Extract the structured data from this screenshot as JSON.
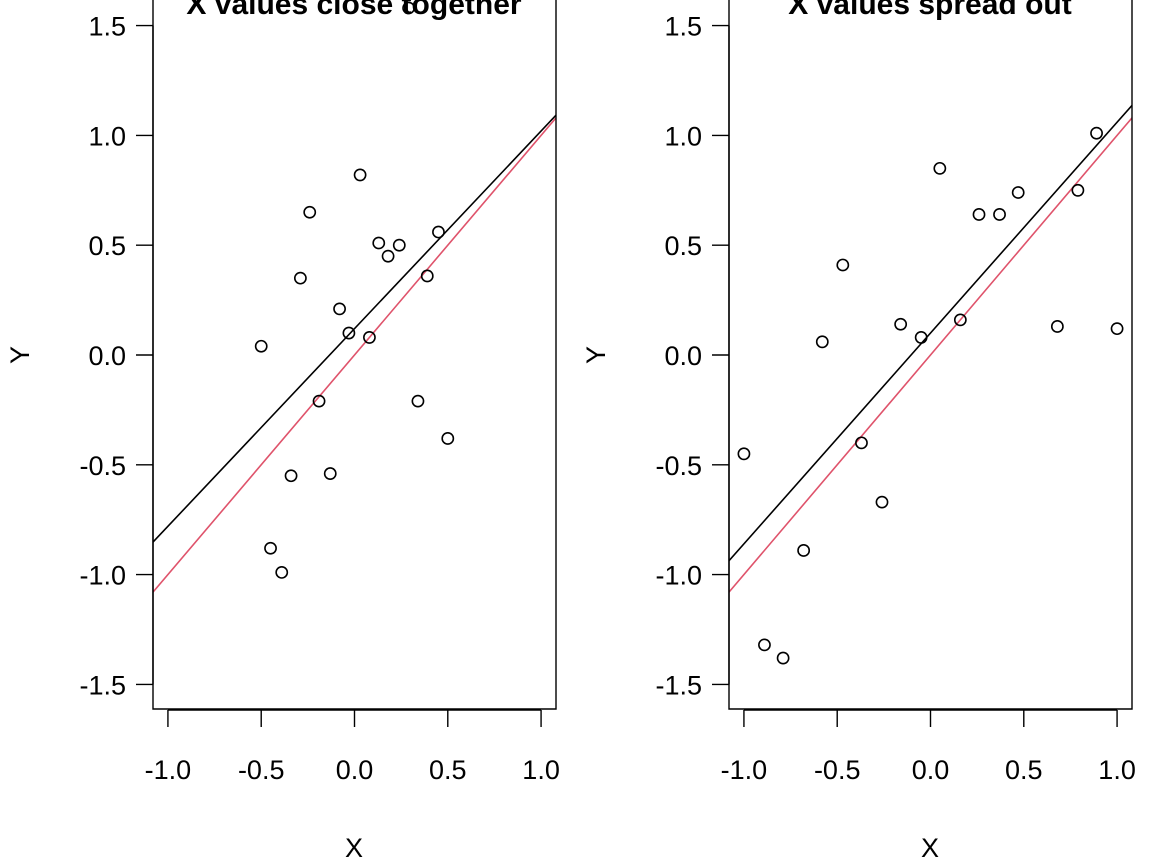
{
  "chart_data": [
    {
      "type": "scatter",
      "title": "X values close together",
      "xlabel": "X",
      "ylabel": "Y",
      "xlim": [
        -1.08,
        1.08
      ],
      "ylim": [
        -1.62,
        1.62
      ],
      "xticks": [
        -1.0,
        -0.5,
        0.0,
        0.5,
        1.0
      ],
      "yticks": [
        -1.5,
        -1.0,
        -0.5,
        0.0,
        0.5,
        1.0,
        1.5
      ],
      "xtick_labels": [
        "-1.0",
        "-0.5",
        "0.0",
        "0.5",
        "1.0"
      ],
      "ytick_labels": [
        "-1.5",
        "-1.0",
        "-0.5",
        "0.0",
        "0.5",
        "1.0",
        "1.5"
      ],
      "points": [
        {
          "x": -0.5,
          "y": 0.04
        },
        {
          "x": -0.45,
          "y": -0.88
        },
        {
          "x": -0.39,
          "y": -0.99
        },
        {
          "x": -0.34,
          "y": -0.55
        },
        {
          "x": -0.29,
          "y": 0.35
        },
        {
          "x": -0.24,
          "y": 0.65
        },
        {
          "x": -0.19,
          "y": -0.21
        },
        {
          "x": -0.13,
          "y": -0.54
        },
        {
          "x": -0.08,
          "y": 0.21
        },
        {
          "x": -0.03,
          "y": 0.1
        },
        {
          "x": 0.03,
          "y": 0.82
        },
        {
          "x": 0.08,
          "y": 0.08
        },
        {
          "x": 0.13,
          "y": 0.51
        },
        {
          "x": 0.18,
          "y": 0.45
        },
        {
          "x": 0.24,
          "y": 0.5
        },
        {
          "x": 0.29,
          "y": 1.58
        },
        {
          "x": 0.34,
          "y": -0.21
        },
        {
          "x": 0.39,
          "y": 0.36
        },
        {
          "x": 0.45,
          "y": 0.56
        },
        {
          "x": 0.5,
          "y": -0.38
        }
      ],
      "lines": [
        {
          "intercept": 0.12,
          "slope": 0.9,
          "color": "#000000"
        },
        {
          "intercept": 0.0,
          "slope": 1.0,
          "color": "#DF536B"
        }
      ]
    },
    {
      "type": "scatter",
      "title": "X values spread out",
      "xlabel": "X",
      "ylabel": "Y",
      "xlim": [
        -1.08,
        1.08
      ],
      "ylim": [
        -1.62,
        1.62
      ],
      "xticks": [
        -1.0,
        -0.5,
        0.0,
        0.5,
        1.0
      ],
      "yticks": [
        -1.5,
        -1.0,
        -0.5,
        0.0,
        0.5,
        1.0,
        1.5
      ],
      "xtick_labels": [
        "-1.0",
        "-0.5",
        "0.0",
        "0.5",
        "1.0"
      ],
      "ytick_labels": [
        "-1.5",
        "-1.0",
        "-0.5",
        "0.0",
        "0.5",
        "1.0",
        "1.5"
      ],
      "points": [
        {
          "x": -1.0,
          "y": -0.45
        },
        {
          "x": -0.89,
          "y": -1.32
        },
        {
          "x": -0.79,
          "y": -1.38
        },
        {
          "x": -0.68,
          "y": -0.89
        },
        {
          "x": -0.58,
          "y": 0.06
        },
        {
          "x": -0.47,
          "y": 0.41
        },
        {
          "x": -0.37,
          "y": -0.4
        },
        {
          "x": -0.26,
          "y": -0.67
        },
        {
          "x": -0.16,
          "y": 0.14
        },
        {
          "x": -0.05,
          "y": 0.08
        },
        {
          "x": 0.05,
          "y": 0.85
        },
        {
          "x": 0.16,
          "y": 0.16
        },
        {
          "x": 0.26,
          "y": 0.64
        },
        {
          "x": 0.37,
          "y": 0.64
        },
        {
          "x": 0.47,
          "y": 0.74
        },
        {
          "x": 0.68,
          "y": 0.13
        },
        {
          "x": 0.79,
          "y": 0.75
        },
        {
          "x": 0.89,
          "y": 1.01
        },
        {
          "x": 1.0,
          "y": 0.12
        }
      ],
      "lines": [
        {
          "intercept": 0.1,
          "slope": 0.96,
          "color": "#000000"
        },
        {
          "intercept": 0.0,
          "slope": 1.0,
          "color": "#DF536B"
        }
      ]
    }
  ]
}
